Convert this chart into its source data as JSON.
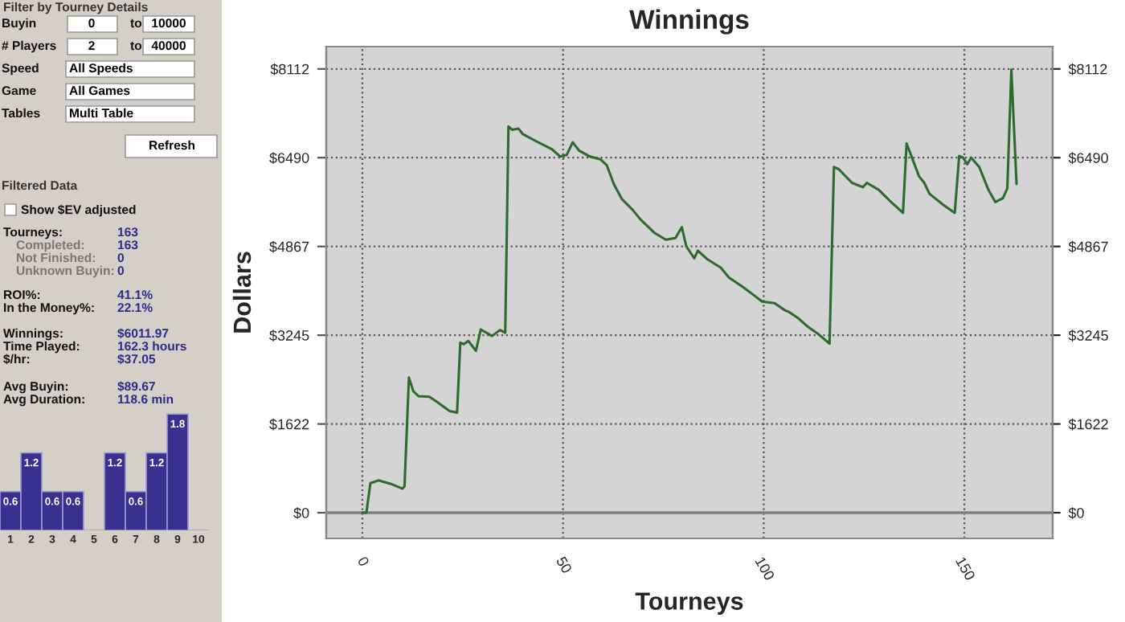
{
  "chart_data": [
    {
      "type": "other",
      "annotations": [
        "Filter by Tourney Details",
        "Buyin",
        "0",
        "to",
        "10000",
        "# Players",
        "2",
        "to",
        "40000",
        "Speed",
        "All Speeds",
        "Game",
        "All Games",
        "Tables",
        "Multi Table",
        "Refresh",
        "Filtered Data",
        "Show $EV adjusted",
        "Tourneys:",
        "163",
        "Completed:",
        "163",
        "Not Finished:",
        "0",
        "Unknown Buyin:",
        "0",
        "ROI%:",
        "41.1%",
        "In the Money%:",
        "22.1%",
        "Winnings:",
        "$6011.97",
        "Time Played:",
        "162.3 hours",
        "$/hr:",
        "$37.05",
        "Avg Buyin:",
        "$89.67",
        "Avg Duration:",
        "118.6 min"
      ]
    },
    {
      "type": "bar",
      "categories": [
        "1",
        "2",
        "3",
        "4",
        "5",
        "6",
        "7",
        "8",
        "9",
        "10"
      ],
      "values": [
        0.6,
        1.2,
        0.6,
        0.6,
        null,
        1.2,
        0.6,
        1.2,
        1.8,
        null
      ],
      "color": "#3b2f8f",
      "data_labels": true
    },
    {
      "type": "line",
      "title": "Winnings",
      "xlabel": "Tourneys",
      "ylabel": "Dollars",
      "x": [
        0,
        1,
        2,
        4,
        7,
        10,
        10.5,
        11.6,
        12.7,
        14,
        16.7,
        18.7,
        21.7,
        23.6,
        24.4,
        25.3,
        26.4,
        28.3,
        29.5,
        32.3,
        34.3,
        35.6,
        36.4,
        37.3,
        38.9,
        40,
        43.3,
        47.3,
        49.3,
        50.9,
        52.4,
        54,
        56.7,
        59.3,
        60.9,
        62.7,
        64.7,
        67.3,
        69.3,
        72.7,
        75.6,
        78,
        79.6,
        80.7,
        82.7,
        83.6,
        86,
        89.3,
        91.3,
        94.7,
        97.3,
        99.6,
        102.7,
        105.3,
        106.3,
        108.7,
        111,
        113.7,
        116.4,
        117.5,
        118.7,
        122,
        124.7,
        125.7,
        128.7,
        131.3,
        134.7,
        135.6,
        138.7,
        140,
        141.3,
        144.7,
        147.6,
        148.7,
        149.7,
        150.7,
        151.7,
        153.7,
        156,
        157.7,
        159.6,
        160.7,
        161.7,
        163
      ],
      "series": [
        {
          "color": "#2d6a2d",
          "values": [
            0,
            0,
            540,
            590,
            530,
            440,
            480,
            2470,
            2220,
            2130,
            2120,
            2020,
            1860,
            1830,
            3110,
            3080,
            3140,
            2960,
            3350,
            3230,
            3340,
            3290,
            7060,
            7000,
            7020,
            6920,
            6790,
            6640,
            6510,
            6540,
            6770,
            6620,
            6510,
            6460,
            6350,
            6000,
            5730,
            5540,
            5360,
            5120,
            4990,
            5020,
            5220,
            4870,
            4650,
            4790,
            4630,
            4480,
            4300,
            4130,
            3990,
            3860,
            3830,
            3700,
            3670,
            3550,
            3400,
            3260,
            3090,
            6320,
            6280,
            6030,
            5950,
            6030,
            5900,
            5710,
            5480,
            6750,
            6150,
            6030,
            5830,
            5630,
            5480,
            6520,
            6490,
            6370,
            6490,
            6320,
            5900,
            5680,
            5750,
            5930,
            8100,
            6010
          ]
        }
      ],
      "xlim": [
        -9,
        172
      ],
      "xticks": [
        0,
        50,
        100,
        150
      ],
      "ylim": [
        -470,
        8520
      ],
      "yticks": [
        {
          "value": 0,
          "label": "$0"
        },
        {
          "value": 1622,
          "label": "$1622"
        },
        {
          "value": 3245,
          "label": "$3245"
        },
        {
          "value": 4867,
          "label": "$4867"
        },
        {
          "value": 6490,
          "label": "$6490"
        },
        {
          "value": 8112,
          "label": "$8112"
        }
      ],
      "y2lim": [
        -470,
        8520
      ],
      "y2ticks": [
        {
          "value": 0,
          "label": "$0"
        },
        {
          "value": 1622,
          "label": "$1622"
        },
        {
          "value": 3245,
          "label": "$3245"
        },
        {
          "value": 4867,
          "label": "$4867"
        },
        {
          "value": 6490,
          "label": "$6490"
        },
        {
          "value": 8112,
          "label": "$8112"
        }
      ],
      "grid": true,
      "ref_lines": [
        {
          "axis": "y",
          "value": 0,
          "color": "#808080"
        }
      ]
    }
  ]
}
